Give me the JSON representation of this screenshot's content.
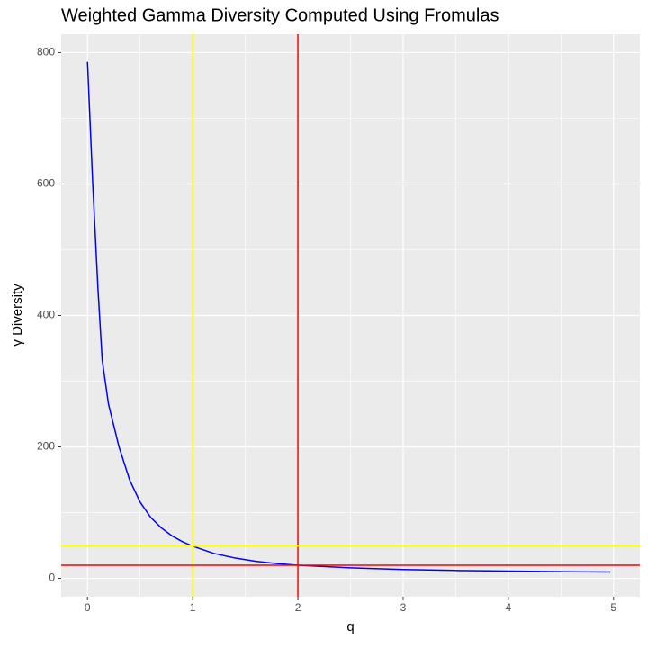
{
  "chart_data": {
    "type": "line",
    "title": "Weighted Gamma Diversity Computed Using Fromulas",
    "x_label": "q",
    "y_label": "γ Diversity",
    "x": [
      0,
      0.05,
      0.1,
      0.14,
      0.2,
      0.3,
      0.4,
      0.5,
      0.6,
      0.7,
      0.8,
      0.9,
      1,
      1.2,
      1.4,
      1.6,
      1.8,
      2,
      2.5,
      3,
      3.5,
      4,
      4.5,
      4.97
    ],
    "values": [
      786,
      600,
      440,
      332,
      265,
      200,
      150,
      116,
      93,
      77,
      65,
      56,
      49,
      38,
      31,
      26,
      22.5,
      20,
      16,
      13.5,
      12,
      11,
      10.2,
      9.6
    ],
    "color": "#0000ff",
    "xlim": [
      -0.25,
      5.25
    ],
    "xticks": [
      0,
      1,
      2,
      3,
      4,
      5
    ],
    "ylim": [
      -28,
      828
    ],
    "yticks": [
      0,
      200,
      400,
      600,
      800
    ],
    "grid": true,
    "vlines": [
      {
        "x": 1,
        "color": "#ffff00"
      },
      {
        "x": 2,
        "color": "#ff0000"
      }
    ],
    "hlines": [
      {
        "y": 49,
        "color": "#ffff00"
      },
      {
        "y": 20,
        "color": "#ff0000"
      }
    ]
  }
}
